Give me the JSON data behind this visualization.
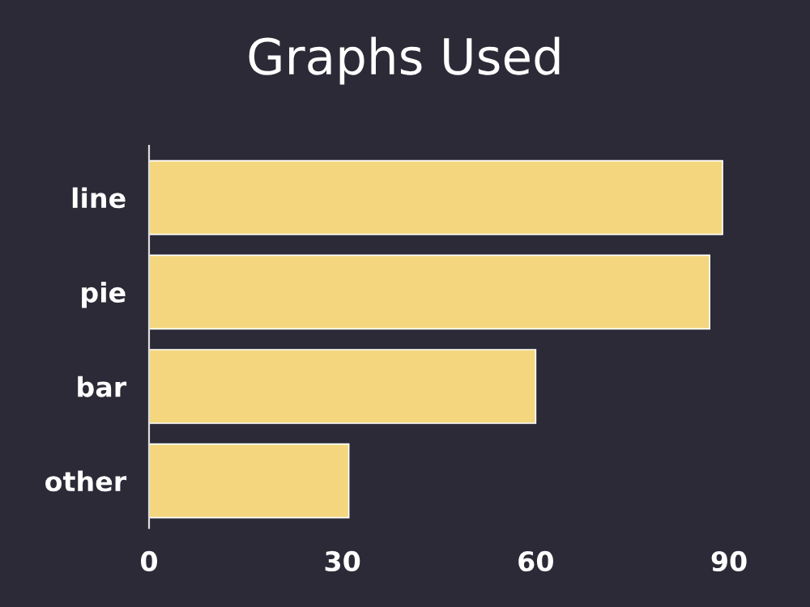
{
  "chart_data": {
    "type": "bar",
    "title": "Graphs Used",
    "orientation": "horizontal",
    "categories": [
      "line",
      "pie",
      "bar",
      "other"
    ],
    "values": [
      89,
      87,
      60,
      31
    ],
    "color": "#f3d67e",
    "xlim": [
      0,
      90
    ],
    "xticks": [
      0,
      30,
      60,
      90
    ],
    "grid": false
  }
}
